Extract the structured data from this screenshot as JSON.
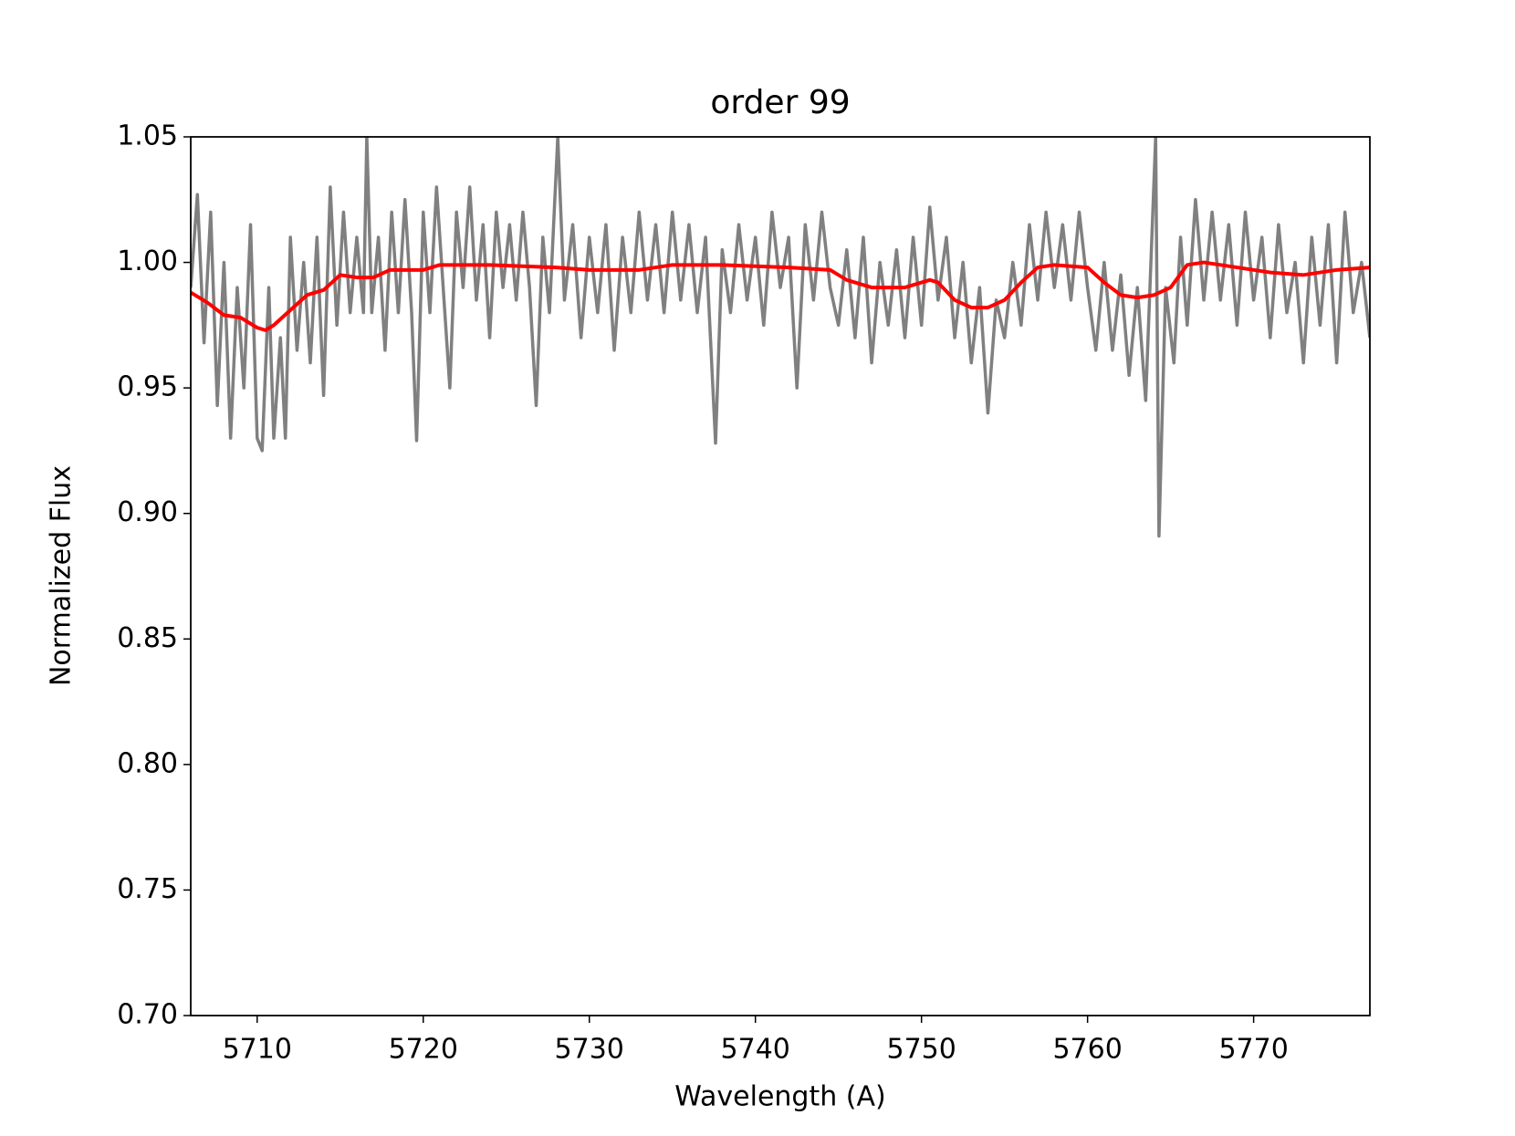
{
  "chart_data": {
    "type": "line",
    "title": "order 99",
    "x_label": "Wavelength (A)",
    "y_label": "Normalized Flux",
    "xlim": [
      5706.0,
      5777.0
    ],
    "ylim": [
      0.7,
      1.05
    ],
    "xticks": [
      5710,
      5720,
      5730,
      5740,
      5750,
      5760,
      5770
    ],
    "yticks": [
      {
        "value": 0.7,
        "label": "0.70"
      },
      0.75,
      {
        "value": 0.8,
        "label": "0.80"
      },
      0.85,
      {
        "value": 0.9,
        "label": "0.90"
      },
      0.95,
      {
        "value": 1.0,
        "label": "1.00"
      },
      1.05
    ],
    "series": [
      {
        "color": "#808080",
        "x": [
          5706.0,
          5706.4,
          5706.8,
          5707.2,
          5707.6,
          5708.0,
          5708.4,
          5708.8,
          5709.2,
          5709.6,
          5710.0,
          5710.3,
          5710.7,
          5711.0,
          5711.4,
          5711.7,
          5712.0,
          5712.4,
          5712.8,
          5713.2,
          5713.6,
          5714.0,
          5714.4,
          5714.8,
          5715.2,
          5715.6,
          5716.0,
          5716.4,
          5716.6,
          5716.9,
          5717.3,
          5717.7,
          5718.1,
          5718.5,
          5718.9,
          5719.3,
          5719.6,
          5720.0,
          5720.4,
          5720.8,
          5721.2,
          5721.6,
          5722.0,
          5722.4,
          5722.8,
          5723.2,
          5723.6,
          5724.0,
          5724.4,
          5724.8,
          5725.2,
          5725.6,
          5726.0,
          5726.4,
          5726.8,
          5727.2,
          5727.6,
          5728.1,
          5728.5,
          5729.0,
          5729.5,
          5730.0,
          5730.5,
          5731.0,
          5731.5,
          5732.0,
          5732.5,
          5733.0,
          5733.5,
          5734.0,
          5734.5,
          5735.0,
          5735.5,
          5736.0,
          5736.5,
          5737.0,
          5737.6,
          5738.0,
          5738.5,
          5739.0,
          5739.5,
          5740.0,
          5740.5,
          5741.0,
          5741.5,
          5742.0,
          5742.5,
          5743.0,
          5743.5,
          5744.0,
          5744.5,
          5745.0,
          5745.5,
          5746.0,
          5746.5,
          5747.0,
          5747.5,
          5748.0,
          5748.5,
          5749.0,
          5749.5,
          5750.0,
          5750.5,
          5751.0,
          5751.5,
          5752.0,
          5752.5,
          5753.0,
          5753.5,
          5754.0,
          5754.5,
          5755.0,
          5755.5,
          5756.0,
          5756.5,
          5757.0,
          5757.5,
          5758.0,
          5758.5,
          5759.0,
          5759.5,
          5760.0,
          5760.5,
          5761.0,
          5761.5,
          5762.0,
          5762.5,
          5763.0,
          5763.5,
          5764.1,
          5764.3,
          5764.7,
          5765.2,
          5765.6,
          5766.0,
          5766.5,
          5767.0,
          5767.5,
          5768.0,
          5768.5,
          5769.0,
          5769.5,
          5770.0,
          5770.5,
          5771.0,
          5771.5,
          5772.0,
          5772.5,
          5773.0,
          5773.5,
          5774.0,
          5774.5,
          5775.0,
          5775.5,
          5776.0,
          5776.5,
          5777.0
        ],
        "values": [
          0.99,
          1.027,
          0.968,
          1.02,
          0.943,
          1.0,
          0.93,
          0.99,
          0.95,
          1.015,
          0.93,
          0.925,
          0.99,
          0.93,
          0.97,
          0.93,
          1.01,
          0.965,
          1.0,
          0.96,
          1.01,
          0.947,
          1.03,
          0.975,
          1.02,
          0.98,
          1.01,
          0.98,
          1.05,
          0.98,
          1.01,
          0.965,
          1.02,
          0.98,
          1.025,
          0.98,
          0.929,
          1.02,
          0.98,
          1.03,
          0.99,
          0.95,
          1.02,
          0.99,
          1.03,
          0.985,
          1.015,
          0.97,
          1.02,
          0.99,
          1.015,
          0.985,
          1.02,
          0.99,
          0.943,
          1.01,
          0.98,
          1.05,
          0.985,
          1.015,
          0.97,
          1.01,
          0.98,
          1.015,
          0.965,
          1.01,
          0.98,
          1.02,
          0.985,
          1.015,
          0.98,
          1.02,
          0.985,
          1.015,
          0.98,
          1.01,
          0.928,
          1.005,
          0.98,
          1.015,
          0.985,
          1.01,
          0.975,
          1.02,
          0.99,
          1.01,
          0.95,
          1.015,
          0.985,
          1.02,
          0.99,
          0.975,
          1.005,
          0.97,
          1.01,
          0.96,
          1.0,
          0.975,
          1.005,
          0.97,
          1.01,
          0.975,
          1.022,
          0.985,
          1.01,
          0.97,
          1.0,
          0.96,
          0.99,
          0.94,
          0.985,
          0.97,
          1.0,
          0.975,
          1.015,
          0.985,
          1.02,
          0.99,
          1.015,
          0.985,
          1.02,
          0.99,
          0.965,
          1.0,
          0.965,
          0.995,
          0.955,
          0.99,
          0.945,
          1.05,
          0.891,
          0.99,
          0.96,
          1.01,
          0.975,
          1.025,
          0.985,
          1.02,
          0.985,
          1.015,
          0.975,
          1.02,
          0.985,
          1.01,
          0.97,
          1.015,
          0.98,
          1.0,
          0.96,
          1.01,
          0.975,
          1.015,
          0.96,
          1.02,
          0.98,
          1.0,
          0.97
        ]
      },
      {
        "color": "#ff0000",
        "x": [
          5706,
          5707,
          5708,
          5709,
          5710,
          5710.5,
          5711,
          5712,
          5713,
          5714,
          5715,
          5716,
          5717,
          5718,
          5720,
          5721,
          5724,
          5728,
          5730,
          5733,
          5735,
          5738,
          5742,
          5744.5,
          5745.5,
          5747,
          5749,
          5750.5,
          5751,
          5752,
          5753,
          5754,
          5755,
          5756,
          5757,
          5758,
          5760,
          5761,
          5762,
          5763,
          5764,
          5765,
          5766,
          5767,
          5769,
          5771,
          5773,
          5775,
          5777
        ],
        "values": [
          0.988,
          0.984,
          0.979,
          0.978,
          0.974,
          0.973,
          0.975,
          0.981,
          0.987,
          0.989,
          0.995,
          0.994,
          0.994,
          0.997,
          0.997,
          0.999,
          0.999,
          0.998,
          0.997,
          0.997,
          0.999,
          0.999,
          0.998,
          0.997,
          0.993,
          0.99,
          0.99,
          0.993,
          0.992,
          0.985,
          0.982,
          0.982,
          0.985,
          0.992,
          0.998,
          0.999,
          0.998,
          0.992,
          0.987,
          0.986,
          0.987,
          0.99,
          0.999,
          1.0,
          0.998,
          0.996,
          0.995,
          0.997,
          0.998
        ]
      }
    ]
  }
}
